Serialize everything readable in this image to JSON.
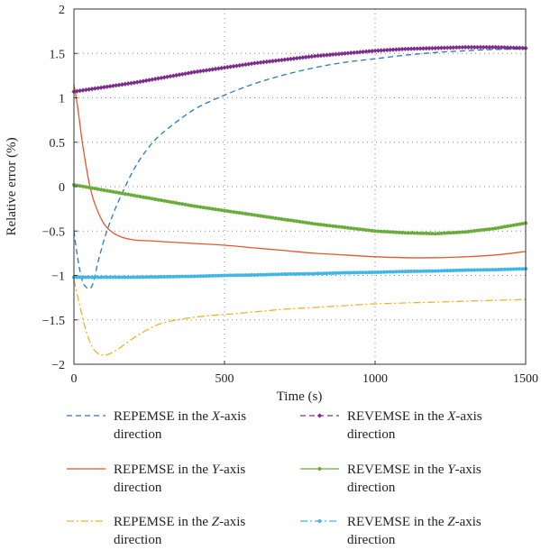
{
  "chart_data": {
    "type": "line",
    "xlabel": "Time (s)",
    "ylabel": "Relative error (%)",
    "xlim": [
      0,
      1500
    ],
    "ylim": [
      -2,
      2
    ],
    "xticks": [
      0,
      500,
      1000,
      1500
    ],
    "yticks": [
      -2,
      -1.5,
      -1,
      -0.5,
      0,
      0.5,
      1,
      1.5,
      2
    ],
    "grid": "dotted, at x = 500 and 1000 and at each y tick",
    "legend_position": "below plot, two columns",
    "series": [
      {
        "name": "REPEMSE in the X-axis direction",
        "name_parts": [
          "REPEMSE in the ",
          "X",
          "-axis",
          "direction"
        ],
        "color": "#2878BD",
        "style": "dashed",
        "marker": "none",
        "x": [
          0,
          10,
          20,
          30,
          40,
          50,
          60,
          70,
          80,
          100,
          120,
          150,
          200,
          250,
          300,
          400,
          500,
          600,
          700,
          800,
          900,
          1000,
          1100,
          1200,
          1300,
          1400,
          1500
        ],
        "y": [
          -0.5,
          -0.75,
          -0.95,
          -1.08,
          -1.13,
          -1.15,
          -1.12,
          -1.0,
          -0.85,
          -0.6,
          -0.4,
          -0.15,
          0.2,
          0.45,
          0.62,
          0.87,
          1.03,
          1.16,
          1.26,
          1.34,
          1.4,
          1.44,
          1.48,
          1.51,
          1.53,
          1.545,
          1.55
        ]
      },
      {
        "name": "REPEMSE in the Y-axis direction",
        "name_parts": [
          "REPEMSE in the ",
          "Y",
          "-axis",
          "direction"
        ],
        "color": "#E0592D",
        "style": "solid",
        "marker": "none",
        "x": [
          0,
          10,
          20,
          30,
          50,
          70,
          100,
          130,
          160,
          200,
          250,
          300,
          400,
          500,
          600,
          700,
          800,
          900,
          1000,
          1100,
          1200,
          1300,
          1400,
          1500
        ],
        "y": [
          1.15,
          0.95,
          0.7,
          0.45,
          0.05,
          -0.2,
          -0.42,
          -0.52,
          -0.57,
          -0.6,
          -0.61,
          -0.62,
          -0.64,
          -0.66,
          -0.69,
          -0.72,
          -0.75,
          -0.77,
          -0.79,
          -0.8,
          -0.8,
          -0.79,
          -0.77,
          -0.73
        ]
      },
      {
        "name": "REPEMSE in the Z-axis direction",
        "name_parts": [
          "REPEMSE in the ",
          "Z",
          "-axis",
          "direction"
        ],
        "color": "#F0B323",
        "style": "dashdot",
        "marker": "none",
        "x": [
          0,
          20,
          40,
          60,
          80,
          100,
          120,
          150,
          200,
          250,
          300,
          400,
          500,
          600,
          700,
          800,
          900,
          1000,
          1100,
          1200,
          1300,
          1400,
          1500
        ],
        "y": [
          -1.05,
          -1.35,
          -1.62,
          -1.8,
          -1.88,
          -1.9,
          -1.88,
          -1.82,
          -1.7,
          -1.6,
          -1.53,
          -1.47,
          -1.44,
          -1.41,
          -1.38,
          -1.36,
          -1.34,
          -1.32,
          -1.31,
          -1.3,
          -1.29,
          -1.28,
          -1.27
        ]
      },
      {
        "name": "REVEMSE in the X-axis direction",
        "name_parts": [
          "REVEMSE in the ",
          "X",
          "-axis",
          "direction"
        ],
        "color": "#7B2D8E",
        "style": "dashed",
        "marker": "diamond",
        "x": [
          0,
          100,
          200,
          300,
          400,
          500,
          600,
          700,
          800,
          900,
          1000,
          1100,
          1200,
          1300,
          1400,
          1500
        ],
        "y": [
          1.07,
          1.12,
          1.17,
          1.23,
          1.29,
          1.34,
          1.39,
          1.43,
          1.47,
          1.5,
          1.53,
          1.55,
          1.56,
          1.57,
          1.57,
          1.56
        ]
      },
      {
        "name": "REVEMSE in the Y-axis direction",
        "name_parts": [
          "REVEMSE in the ",
          "Y",
          "-axis",
          "direction"
        ],
        "color": "#6AAC3C",
        "style": "solid",
        "marker": "circle",
        "x": [
          0,
          100,
          200,
          300,
          400,
          500,
          600,
          700,
          800,
          900,
          1000,
          1100,
          1200,
          1300,
          1400,
          1500
        ],
        "y": [
          0.02,
          -0.04,
          -0.1,
          -0.16,
          -0.22,
          -0.27,
          -0.32,
          -0.37,
          -0.42,
          -0.46,
          -0.5,
          -0.52,
          -0.53,
          -0.51,
          -0.47,
          -0.41
        ]
      },
      {
        "name": "REVEMSE in the Z-axis direction",
        "name_parts": [
          "REVEMSE in the ",
          "Z",
          "-axis",
          "direction"
        ],
        "color": "#3FB6E8",
        "style": "dashdot",
        "marker": "circle",
        "x": [
          0,
          100,
          200,
          300,
          400,
          500,
          600,
          700,
          800,
          900,
          1000,
          1100,
          1200,
          1300,
          1400,
          1500
        ],
        "y": [
          -1.02,
          -1.02,
          -1.02,
          -1.015,
          -1.01,
          -1.0,
          -0.995,
          -0.985,
          -0.98,
          -0.97,
          -0.965,
          -0.955,
          -0.95,
          -0.94,
          -0.935,
          -0.925
        ]
      }
    ]
  }
}
